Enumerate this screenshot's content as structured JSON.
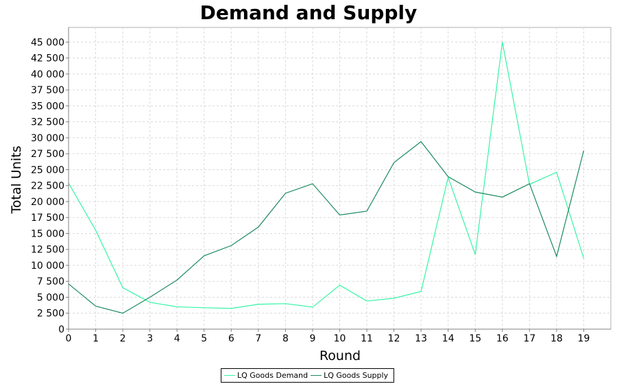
{
  "chart_data": {
    "type": "line",
    "title": "Demand and Supply",
    "xlabel": "Round",
    "ylabel": "Total Units",
    "x": [
      0,
      1,
      2,
      3,
      4,
      5,
      6,
      7,
      8,
      9,
      10,
      11,
      12,
      13,
      14,
      15,
      16,
      17,
      18,
      19
    ],
    "xlim": [
      0,
      20
    ],
    "ylim": [
      0,
      47300
    ],
    "y_ticks": [
      0,
      2500,
      5000,
      7500,
      10000,
      12500,
      15000,
      17500,
      20000,
      22500,
      25000,
      27500,
      30000,
      32500,
      35000,
      37500,
      40000,
      42500,
      45000
    ],
    "y_tick_labels": [
      "0",
      "2 500",
      "5 000",
      "7 500",
      "10 000",
      "12 500",
      "15 000",
      "17 500",
      "20 000",
      "22 500",
      "25 000",
      "27 500",
      "30 000",
      "32 500",
      "35 000",
      "37 500",
      "40 000",
      "42 500",
      "45 000"
    ],
    "x_tick_labels": [
      "0",
      "1",
      "2",
      "3",
      "4",
      "5",
      "6",
      "7",
      "8",
      "9",
      "10",
      "11",
      "12",
      "13",
      "14",
      "15",
      "16",
      "17",
      "18",
      "19"
    ],
    "grid": true,
    "legend_position": "bottom-center",
    "series": [
      {
        "name": "LQ Goods Demand",
        "color": "#33f5a5",
        "values": [
          22900,
          15500,
          6500,
          4200,
          3500,
          3350,
          3250,
          3900,
          4000,
          3450,
          6900,
          4400,
          4850,
          5900,
          23800,
          11700,
          45000,
          22700,
          24600,
          11100
        ]
      },
      {
        "name": "LQ Goods Supply",
        "color": "#1a8a5e",
        "values": [
          7100,
          3600,
          2500,
          5000,
          7700,
          11500,
          13100,
          16000,
          21300,
          22800,
          17900,
          18500,
          26100,
          29400,
          23900,
          21500,
          20700,
          22800,
          11400,
          28000
        ]
      }
    ]
  }
}
